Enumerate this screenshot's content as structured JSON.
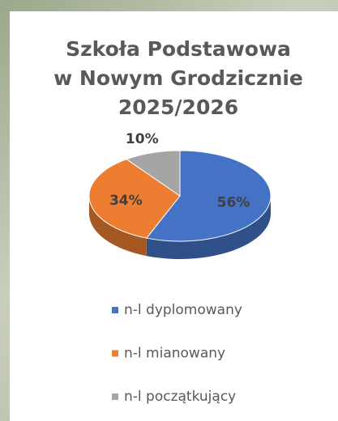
{
  "chart_data": {
    "type": "pie",
    "title": [
      "Szkoła Podstawowa",
      "w Nowym Grodzicznie",
      "2025/2026"
    ],
    "categories": [
      "n-l dyplomowany",
      "n-l mianowany",
      "n-l początkujący"
    ],
    "values": [
      56,
      34,
      10
    ],
    "value_labels": [
      "56%",
      "34%",
      "10%"
    ],
    "colors": [
      "#4472c4",
      "#ed7d31",
      "#a5a5a5"
    ],
    "legend": "bottom"
  }
}
